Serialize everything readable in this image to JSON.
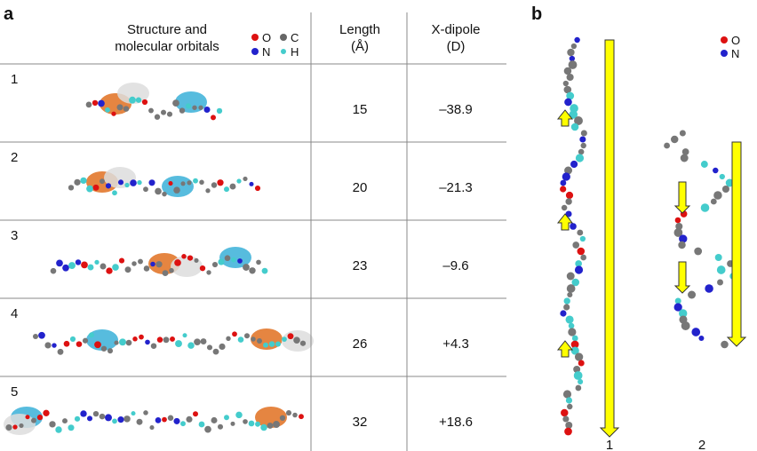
{
  "panel_a": {
    "label": "a",
    "header": {
      "structure": [
        "Structure and",
        "molecular orbitals"
      ],
      "length": [
        "Length",
        "(Å)"
      ],
      "dipole": [
        "X-dipole",
        "(D)"
      ]
    },
    "legend": [
      "O",
      "C",
      "N",
      "H"
    ],
    "rows": [
      {
        "id": "1",
        "length": "15",
        "dipole": "–38.9"
      },
      {
        "id": "2",
        "length": "20",
        "dipole": "–21.3"
      },
      {
        "id": "3",
        "length": "23",
        "dipole": "–9.6"
      },
      {
        "id": "4",
        "length": "26",
        "dipole": "+4.3"
      },
      {
        "id": "5",
        "length": "32",
        "dipole": "+18.6"
      }
    ]
  },
  "panel_b": {
    "label": "b",
    "legend": [
      "O",
      "N"
    ],
    "molecules": [
      "1",
      "2"
    ]
  }
}
